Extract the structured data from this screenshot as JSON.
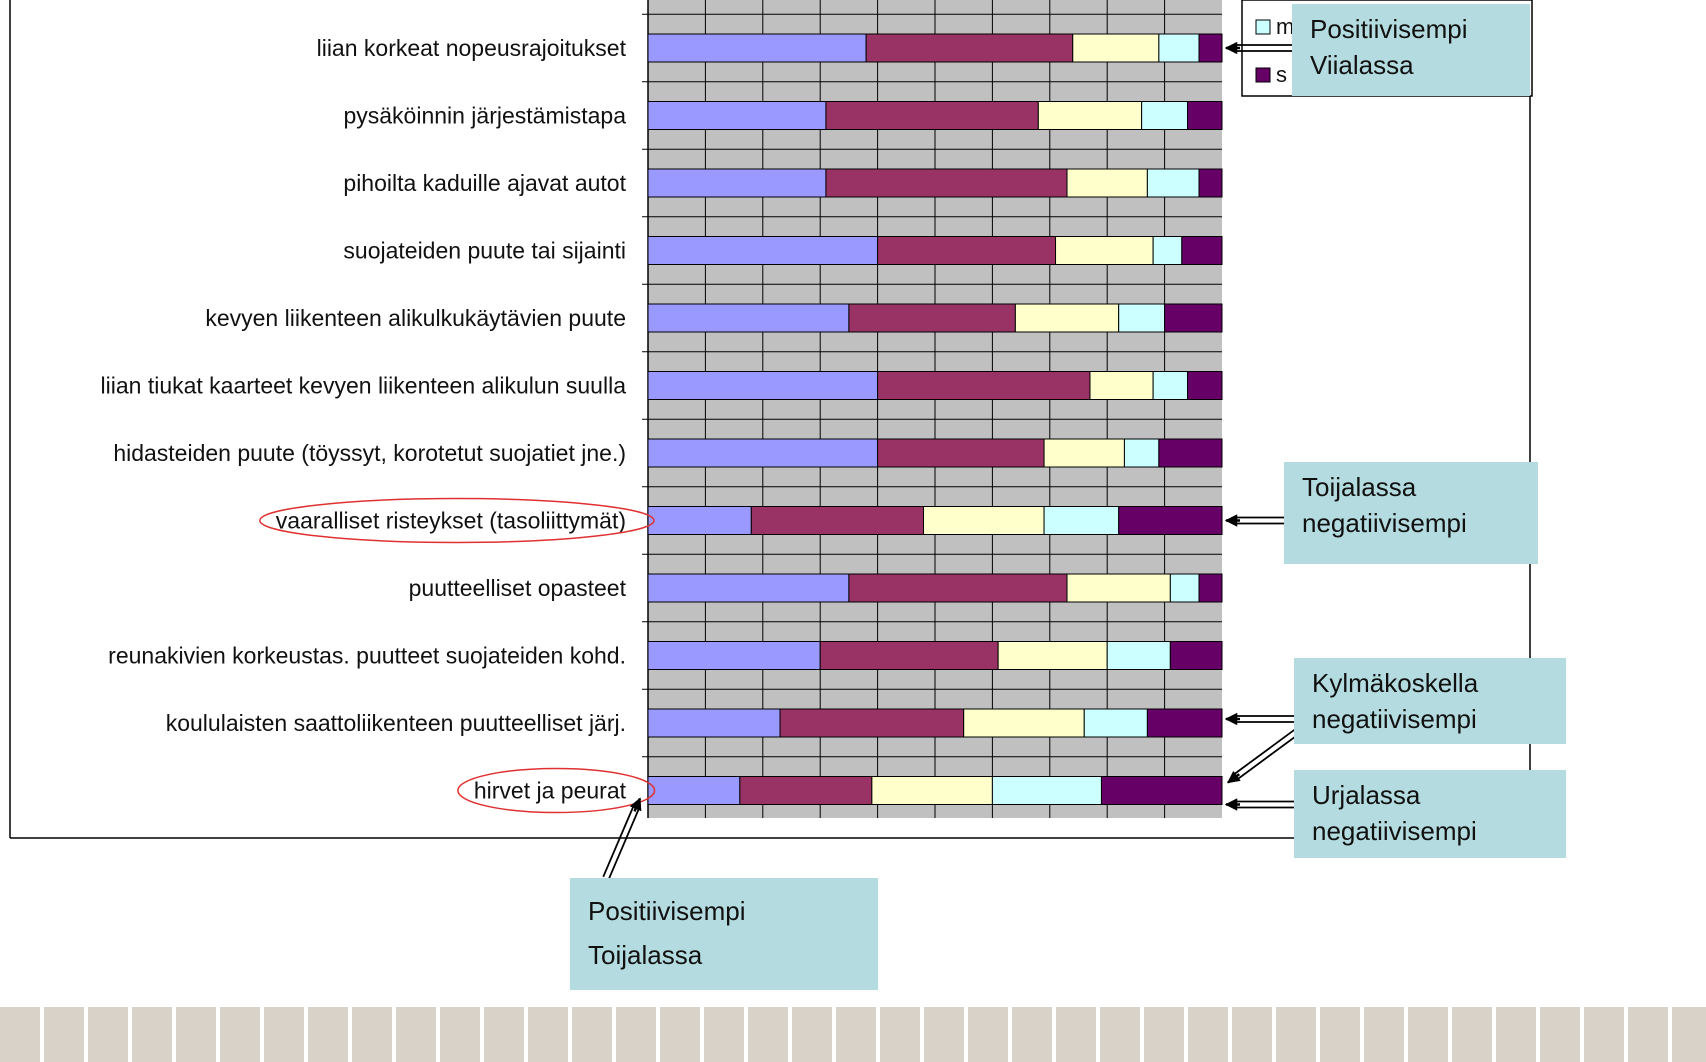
{
  "chart_data": {
    "type": "bar",
    "orientation": "horizontal",
    "stacked": "100%",
    "grid": true,
    "legend_position": "top-right",
    "xlim": [
      0,
      100
    ],
    "categories": [
      "liian korkeat nopeusrajoitukset",
      "pysäköinnin järjestämistapa",
      "pihoilta kaduille ajavat autot",
      "suojateiden puute tai sijainti",
      "kevyen liikenteen alikulkukäytävien puute",
      "liian tiukat kaarteet kevyen liikenteen alikulun suulla",
      "hidasteiden puute (töyssyt, korotetut suojatiet jne.)",
      "vaaralliset risteykset (tasoliittymät)",
      "puutteelliset opasteet",
      "reunakivien korkeustas. puutteet suojateiden kohd.",
      "koululaisten saattoliikenteen puutteelliset järj.",
      "hirvet ja peurat"
    ],
    "series": [
      {
        "color": "#9999FF",
        "values": [
          38,
          31,
          31,
          40,
          35,
          40,
          40,
          18,
          35,
          30,
          23,
          16
        ]
      },
      {
        "color": "#993366",
        "values": [
          36,
          37,
          42,
          31,
          29,
          37,
          29,
          30,
          38,
          31,
          32,
          23
        ]
      },
      {
        "color": "#FFFFCC",
        "values": [
          15,
          18,
          14,
          17,
          18,
          11,
          14,
          21,
          18,
          19,
          21,
          21
        ]
      },
      {
        "color": "#CCFFFF",
        "values": [
          7,
          8,
          9,
          5,
          8,
          6,
          6,
          13,
          5,
          11,
          11,
          19
        ]
      },
      {
        "color": "#660066",
        "values": [
          4,
          6,
          4,
          7,
          10,
          6,
          11,
          18,
          4,
          9,
          13,
          21
        ]
      }
    ],
    "legend": [
      {
        "label": "m",
        "color": "#CCFFFF"
      },
      {
        "label": "s",
        "color": "#660066"
      }
    ],
    "highlighted_categories": [
      7,
      11
    ],
    "callouts": [
      {
        "lines": [
          "Positiivisempi",
          "Viialassa"
        ],
        "target_category": 0,
        "target_side": "end"
      },
      {
        "lines": [
          "Toijalassa",
          "negatiivisempi"
        ],
        "target_category": 7,
        "target_side": "end"
      },
      {
        "lines": [
          "Kylmäkoskella",
          "negatiivisempi"
        ],
        "target_category": 10,
        "target_side": "end"
      },
      {
        "lines": [
          "Urjalassa",
          "negatiivisempi"
        ],
        "target_category": 11,
        "target_side": "end"
      },
      {
        "lines": [
          "Positiivisempi",
          "Toijalassa"
        ],
        "target_category": 11,
        "target_side": "start"
      }
    ],
    "colors": {
      "plot_background": "#C0C0C0",
      "callout_background": "#B4DCE0",
      "ellipse": "#E03030",
      "footer_tile": "#D9D2C9"
    }
  }
}
